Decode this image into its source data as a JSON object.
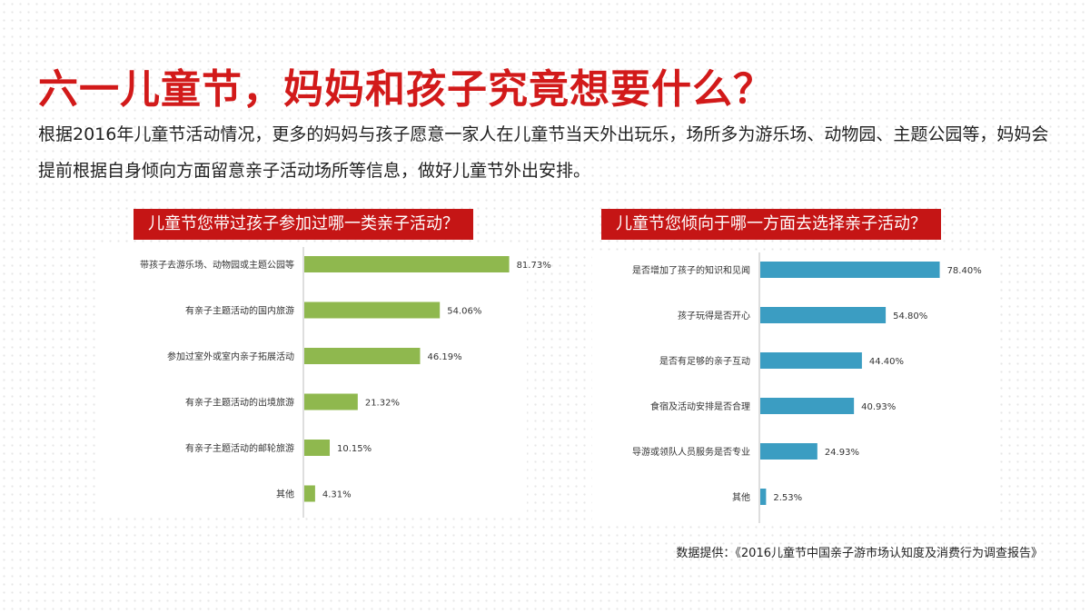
{
  "title": "六一儿童节，妈妈和孩子究竟想要什么？",
  "intro": "根据2016年儿童节活动情况，更多的妈妈与孩子愿意一家人在儿童节当天外出玩乐，场所多为游乐场、动物园、主题公园等，妈妈会提前根据自身倾向方面留意亲子活动场所等信息，做好儿童节外出安排。",
  "source": "数据提供：《2016儿童节中国亲子游市场认知度及消费行为调查报告》",
  "colors": {
    "title": "#d21a1a",
    "header_bg": "#c51515",
    "green_bar": "#8fb84e",
    "blue_bar": "#3b9dc2"
  },
  "chart_data": [
    {
      "type": "bar",
      "orientation": "horizontal",
      "title": "儿童节您带过孩子参加过哪一类亲子活动？",
      "categories": [
        "带孩子去游乐场、动物园或主题公园等",
        "有亲子主题活动的国内旅游",
        "参加过室外或室内亲子拓展活动",
        "有亲子主题活动的出境旅游",
        "有亲子主题活动的邮轮旅游",
        "其他"
      ],
      "values": [
        81.73,
        54.06,
        46.19,
        21.32,
        10.15,
        4.31
      ],
      "value_labels": [
        "81.73%",
        "54.06%",
        "46.19%",
        "21.32%",
        "10.15%",
        "4.31%"
      ],
      "unit": "%",
      "xlim": [
        0,
        100
      ],
      "color": "#8fb84e"
    },
    {
      "type": "bar",
      "orientation": "horizontal",
      "title": "儿童节您倾向于哪一方面去选择亲子活动？",
      "categories": [
        "是否增加了孩子的知识和见闻",
        "孩子玩得是否开心",
        "是否有足够的亲子互动",
        "食宿及活动安排是否合理",
        "导游或领队人员服务是否专业",
        "其他"
      ],
      "values": [
        78.4,
        54.8,
        44.4,
        40.93,
        24.93,
        2.53
      ],
      "value_labels": [
        "78.40%",
        "54.80%",
        "44.40%",
        "40.93%",
        "24.93%",
        "2.53%"
      ],
      "unit": "%",
      "xlim": [
        0,
        100
      ],
      "color": "#3b9dc2"
    }
  ]
}
